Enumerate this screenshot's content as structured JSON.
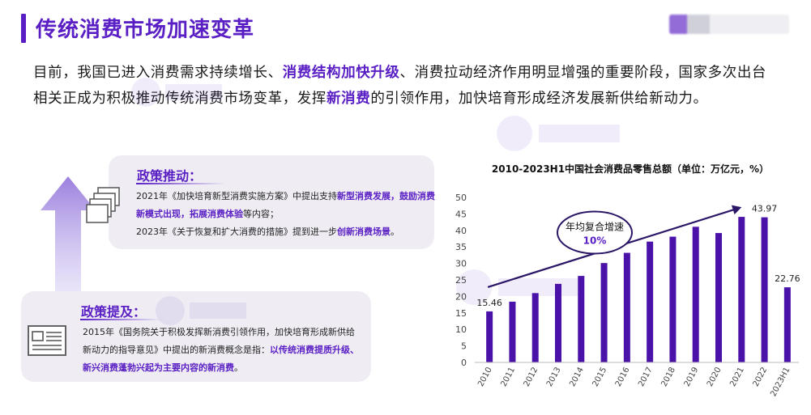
{
  "header": {
    "title": "传统消费市场加速变革",
    "accent": "#5a1fc4"
  },
  "intro": {
    "t1": "目前，我国已进入消费需求持续增长、",
    "h1": "消费结构加快升级",
    "t2": "、消费拉动经济作用明显增强的重要阶段，国家多次出台相关正成为积极推动传统消费市场变革，发挥",
    "h2": "新消费",
    "t3": "的引领作用，加快培育形成经济发展新供给新动力。"
  },
  "policy_push": {
    "heading": "政策推动：",
    "p1a": "2021年《加快培育新型消费实施方案》中提出支持",
    "p1b": "新型消费发展",
    "p1c": "，",
    "p1d": "鼓励消费新模式出现，拓展消费体验",
    "p1e": "等内容；",
    "p2a": "2023年《关于恢复和扩大消费的措施》提到进一步",
    "p2b": "创新消费场景",
    "p2c": "。"
  },
  "policy_mention": {
    "heading": "政策提及：",
    "p1": "2015年《国务院关于积极发挥新消费引领作用，加快培育形成新供给新动力的指导意见》中提出的新消费概念是指：",
    "p2": "以传统消费提质升级、新兴消费蓬勃兴起为主要内容的新消费",
    "p3": "。"
  },
  "chart_data": {
    "type": "bar",
    "title": "2010-2023H1中国社会消费品零售总额（单位：万亿元，%）",
    "categories": [
      "2010",
      "2011",
      "2012",
      "2013",
      "2014",
      "2015",
      "2016",
      "2017",
      "2018",
      "2019",
      "2020",
      "2021",
      "2022",
      "2023H1"
    ],
    "values": [
      15.46,
      18.4,
      21.0,
      23.8,
      26.2,
      30.1,
      33.2,
      36.6,
      38.1,
      41.1,
      39.2,
      44.1,
      43.97,
      22.76
    ],
    "labeled": {
      "0": "15.46",
      "12": "43.97",
      "13": "22.76"
    },
    "ylim": [
      0,
      50
    ],
    "yticks": [
      0,
      5,
      10,
      15,
      20,
      25,
      30,
      35,
      40,
      45,
      50
    ],
    "bar_color": "#4a12a8",
    "annotation": {
      "label": "年均复合增速",
      "value": "10%"
    }
  }
}
